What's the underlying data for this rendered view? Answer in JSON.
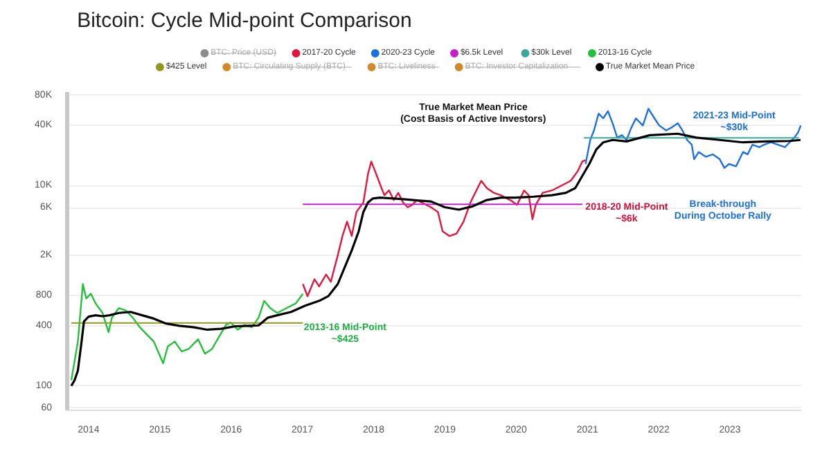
{
  "chart_data": {
    "type": "line",
    "title": "Bitcoin: Cycle Mid-point Comparison",
    "log": true,
    "grid": "y",
    "legend": "top",
    "xlim": [
      2013.7,
      2024.0
    ],
    "xticks": [
      2014,
      2015,
      2016,
      2017,
      2018,
      2019,
      2020,
      2021,
      2022,
      2023
    ],
    "ylim": [
      57,
      86000
    ],
    "yticks": [
      60,
      100,
      400,
      800,
      {
        "value": 2000,
        "label": "2K"
      },
      {
        "value": 6000,
        "label": "6K"
      },
      {
        "value": 10000,
        "label": "10K"
      },
      {
        "value": 40000,
        "label": "40K"
      },
      {
        "value": 80000,
        "label": "80K"
      }
    ],
    "series": [
      {
        "name": "BTC: Price (USD)",
        "color": "#8c8c8c"
      },
      {
        "name": "2017-20 Cycle",
        "color": "#e0173c",
        "x": [
          2017.007,
          2017.072,
          2017.17,
          2017.235,
          2017.333,
          2017.399,
          2017.497,
          2017.562,
          2017.627,
          2017.693,
          2017.758,
          2017.856,
          2017.922,
          2017.967,
          2018.02,
          2018.085,
          2018.15,
          2018.216,
          2018.281,
          2018.346,
          2018.412,
          2018.477,
          2018.542,
          2018.608,
          2018.804,
          2018.902,
          2018.967,
          2019.065,
          2019.163,
          2019.261,
          2019.359,
          2019.458,
          2019.51,
          2019.588,
          2019.686,
          2019.784,
          2019.915,
          2020.013,
          2020.111,
          2020.176,
          2020.229,
          2020.275,
          2020.373,
          2020.503,
          2020.634,
          2020.765,
          2020.863,
          2020.928,
          2020.974
        ],
        "values": [
          1040,
          787,
          1161,
          984,
          1295,
          1096,
          2018,
          3135,
          4365,
          3135,
          5451,
          6802,
          13200,
          17400,
          13930,
          10560,
          8016,
          8950,
          7180,
          8470,
          6802,
          6085,
          6440,
          7180,
          6085,
          5451,
          3500,
          3135,
          3320,
          4365,
          6802,
          9460,
          11170,
          9460,
          8470,
          8016,
          7180,
          6440,
          8950,
          8016,
          4620,
          6440,
          8470,
          8950,
          10000,
          11170,
          13930,
          17400,
          18000
        ]
      },
      {
        "name": "2020-23 Cycle",
        "color": "#1e6fe0",
        "x": [
          2020.974,
          2021.039,
          2021.092,
          2021.157,
          2021.222,
          2021.288,
          2021.353,
          2021.418,
          2021.484,
          2021.549,
          2021.614,
          2021.68,
          2021.778,
          2021.856,
          2021.941,
          2022.007,
          2022.105,
          2022.17,
          2022.268,
          2022.333,
          2022.399,
          2022.464,
          2022.497,
          2022.562,
          2022.66,
          2022.758,
          2022.856,
          2022.922,
          2022.987,
          2023.085,
          2023.183,
          2023.248,
          2023.314,
          2023.412,
          2023.477,
          2023.575,
          2023.673,
          2023.771,
          2023.837,
          2023.902,
          2023.954,
          2023.993
        ],
        "values": [
          16440,
          28570,
          35560,
          52360,
          46990,
          55450,
          41990,
          30150,
          31900,
          28570,
          37670,
          46990,
          39840,
          58510,
          46990,
          39840,
          35560,
          37670,
          41990,
          35560,
          28570,
          25600,
          18350,
          21650,
          19420,
          20510,
          18350,
          15020,
          16440,
          15560,
          21650,
          20510,
          25600,
          24200,
          25600,
          27040,
          25600,
          24200,
          27040,
          30150,
          33740,
          39840
        ]
      },
      {
        "name": "$6.5k Level",
        "color": "#c51fc8",
        "x": [
          2017.007,
          2020.928
        ],
        "values": [
          6500,
          6500
        ]
      },
      {
        "name": "$30k Level",
        "color": "#3aa89a",
        "x": [
          2020.948,
          2023.967
        ],
        "values": [
          30000,
          30000
        ]
      },
      {
        "name": "2013-16 Cycle",
        "color": "#25c03a",
        "x": [
          2013.758,
          2013.804,
          2013.85,
          2013.92,
          2013.967,
          2014.033,
          2014.098,
          2014.196,
          2014.281,
          2014.327,
          2014.425,
          2014.523,
          2014.621,
          2014.719,
          2014.817,
          2014.915,
          2015.046,
          2015.111,
          2015.209,
          2015.307,
          2015.405,
          2015.536,
          2015.634,
          2015.732,
          2015.83,
          2015.928,
          2015.993,
          2016.092,
          2016.19,
          2016.288,
          2016.386,
          2016.464,
          2016.549,
          2016.647,
          2016.778,
          2016.908,
          2017.007
        ],
        "values": [
          114,
          177,
          277,
          1040,
          747,
          833,
          667,
          535,
          344,
          480,
          598,
          566,
          480,
          385,
          326,
          277,
          168,
          247,
          277,
          221,
          234,
          292,
          209,
          234,
          308,
          406,
          430,
          364,
          406,
          385,
          480,
          706,
          598,
          535,
          598,
          667,
          833
        ]
      },
      {
        "name": "$425 Level",
        "color": "#8f9a1c",
        "x": [
          2013.758,
          2017.007
        ],
        "values": [
          425,
          425
        ]
      },
      {
        "name": "BTC: Circulating Supply (BTC)",
        "color": "#d08a2a"
      },
      {
        "name": "BTC: Liveliness",
        "color": "#d08a2a"
      },
      {
        "name": "BTC: Investor Capitalization",
        "color": "#d08a2a"
      },
      {
        "name": "True Market Mean Price",
        "color": "#000000",
        "x": [
          2013.758,
          2013.804,
          2013.85,
          2013.902,
          2013.935,
          2014.0,
          2014.098,
          2014.196,
          2014.294,
          2014.425,
          2014.588,
          2014.752,
          2014.915,
          2015.078,
          2015.275,
          2015.471,
          2015.667,
          2015.863,
          2016.059,
          2016.255,
          2016.386,
          2016.516,
          2016.647,
          2016.843,
          2017.039,
          2017.235,
          2017.366,
          2017.497,
          2017.595,
          2017.693,
          2017.791,
          2017.856,
          2017.922,
          2017.987,
          2018.085,
          2018.281,
          2018.477,
          2018.608,
          2018.804,
          2019.0,
          2019.196,
          2019.392,
          2019.588,
          2019.784,
          2019.98,
          2020.242,
          2020.503,
          2020.699,
          2020.83,
          2020.928,
          2021.026,
          2021.124,
          2021.222,
          2021.353,
          2021.549,
          2021.876,
          2022.268,
          2022.529,
          2022.856,
          2023.183,
          2023.51,
          2023.837,
          2023.99
        ],
        "values": [
          100,
          114,
          142,
          276,
          439,
          491,
          507,
          496,
          507,
          535,
          548,
          507,
          470,
          421,
          398,
          385,
          364,
          372,
          394,
          398,
          402,
          480,
          507,
          548,
          632,
          706,
          789,
          1040,
          1530,
          2254,
          3500,
          5445,
          6790,
          7430,
          7590,
          7430,
          7260,
          7110,
          6950,
          6085,
          5755,
          6220,
          7180,
          7590,
          7590,
          7750,
          8016,
          8470,
          9460,
          12480,
          16440,
          22900,
          27040,
          28570,
          27630,
          31900,
          32970,
          30150,
          28570,
          27040,
          27630,
          27900,
          28570
        ]
      }
    ],
    "annotations": [
      "2013-16 Mid-Point\n~$425",
      "2018-20 Mid-Point\n~$6k",
      "2021-23 Mid-Point\n~$30k",
      "Break-through\nDuring October Rally",
      "True Market Mean Price\n(Cost Basis of Active Investors)"
    ]
  }
}
